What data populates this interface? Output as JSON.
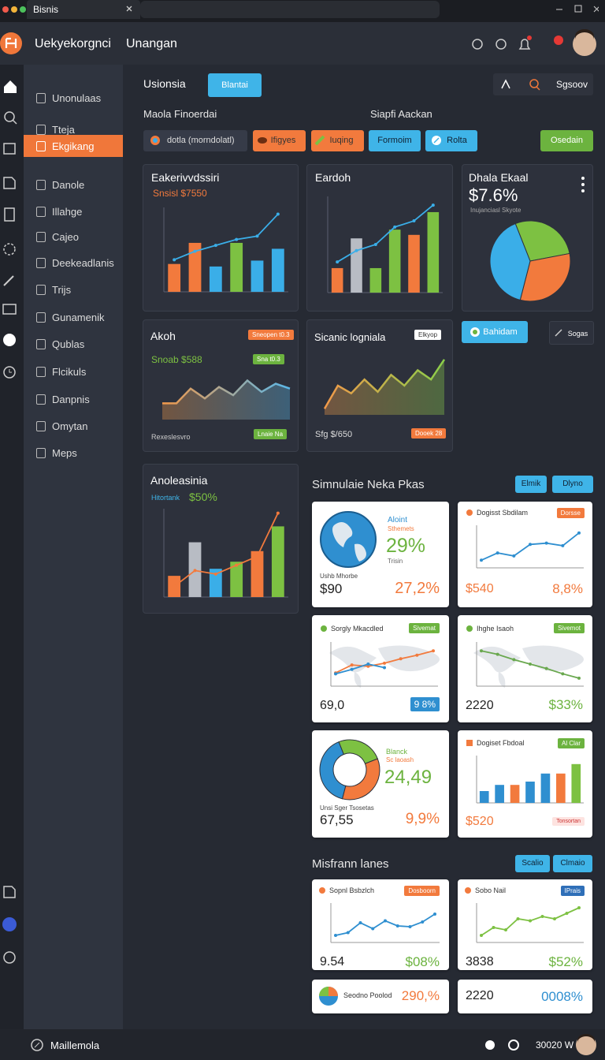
{
  "browser": {
    "tab_title": "Bisnis"
  },
  "header": {
    "app_name": "Uekyekorgnci",
    "section": "Unangan"
  },
  "sidebar": {
    "items": [
      {
        "label": "Unonulaas"
      },
      {
        "label": "Tteja"
      },
      {
        "label": "Ekgikang",
        "active": true
      },
      {
        "label": "Danole"
      },
      {
        "label": "Illahge"
      },
      {
        "label": "Cajeo"
      },
      {
        "label": "Deekeadlanis"
      },
      {
        "label": "Trijs"
      },
      {
        "label": "Gunamenik"
      },
      {
        "label": "Qublas"
      },
      {
        "label": "Flcikuls"
      },
      {
        "label": "Danpnis"
      },
      {
        "label": "Omytan"
      },
      {
        "label": "Meps"
      }
    ]
  },
  "toolbar": {
    "title": "Usionsia",
    "tab": "Blantai",
    "account": "Sgsoov"
  },
  "filters": {
    "left_label": "Maola Finoerdai",
    "right_label": "Siapfi Aackan",
    "chips": [
      "dotla (morndolatl)",
      "Ifigyes",
      "Iuqing",
      "Formoim",
      "Rolta"
    ],
    "action": "Osedain"
  },
  "overview": {
    "revenue": {
      "title": "Eakerivvdssiri",
      "subtitle": "Snsisl $7550",
      "chart": {
        "type": "bar",
        "ylim": [
          0,
          100
        ],
        "bars": {
          "values": [
            33,
            58,
            30,
            58,
            37,
            51
          ],
          "colors": [
            "#f27a3d",
            "#f27a3d",
            "#3aaee8",
            "#7dc142",
            "#3aaee8",
            "#3aaee8"
          ]
        },
        "series": [
          {
            "values": [
              38,
              48,
              55,
              62,
              66,
              92
            ],
            "color": "#3aaee8"
          }
        ]
      }
    },
    "earnings": {
      "title": "Eardoh",
      "chart": {
        "type": "bar",
        "ylim": [
          0,
          110
        ],
        "bars": {
          "values": [
            28,
            62,
            28,
            72,
            66,
            92
          ],
          "colors": [
            "#f27a3d",
            "#b8bcc4",
            "#7dc142",
            "#7dc142",
            "#f27a3d",
            "#7dc142"
          ]
        },
        "series": [
          {
            "values": [
              35,
              48,
              55,
              75,
              82,
              100
            ],
            "color": "#3aaee8"
          }
        ]
      }
    },
    "share": {
      "title": "Dhala Ekaal",
      "value": "$7.6%",
      "subtitle": "Inujanciasl Skyote",
      "chart": {
        "type": "pie",
        "values": [
          28,
          32,
          40
        ],
        "colors": [
          "#7dc142",
          "#f27a3d",
          "#3aaee8"
        ]
      }
    },
    "trend": {
      "title": "Akoh",
      "badge": "Sneopen t0.3",
      "value": "Snoab $588",
      "badge2": "Sna t0.3",
      "footer": "Rexeslesvro",
      "badge3": "Lnaie Na",
      "chart": {
        "type": "area",
        "ylim": [
          0,
          60
        ],
        "values": [
          20,
          20,
          38,
          26,
          40,
          30,
          48,
          34,
          44,
          38
        ],
        "color": "#f2994a",
        "color2": "#5ab7e8"
      }
    },
    "signal": {
      "title": "Sicanic logniala",
      "badge": "Elkyop",
      "footer": "Sfg $/650",
      "badge2": "Dooek 28",
      "chart": {
        "type": "area",
        "ylim": [
          0,
          80
        ],
        "values": [
          8,
          38,
          28,
          46,
          30,
          52,
          38,
          58,
          46,
          72
        ],
        "color": "#f2994a",
        "color2": "#8bcf4a"
      }
    },
    "buttons": [
      "Bahidam",
      "Sogas"
    ],
    "analysis": {
      "title": "Anoleasinia",
      "label": "Hitortank",
      "value": "$50%",
      "chart": {
        "type": "bar",
        "ylim": [
          0,
          100
        ],
        "bars": {
          "values": [
            24,
            62,
            32,
            40,
            52,
            80
          ],
          "colors": [
            "#f27a3d",
            "#b8bcc4",
            "#3aaee8",
            "#7dc142",
            "#f27a3d",
            "#7dc142"
          ]
        },
        "series": [
          {
            "values": [
              12,
              30,
              26,
              36,
              46,
              95
            ],
            "color": "#f27a3d"
          }
        ]
      }
    }
  },
  "simulation": {
    "title": "Simnulaie Neka Pkas",
    "buttons": [
      "Elmik",
      "Dlyno"
    ],
    "globe": {
      "label": "Aloint",
      "sublabel": "Sthemets",
      "value": "29%",
      "note": "Trisin",
      "caption": "Ushb Mhorbe",
      "amount": "$90",
      "change": "27,2%"
    },
    "growth": {
      "title": "Dogisst Sbdilam",
      "badge": "Dorsse",
      "amount": "$540",
      "change": "8,8%",
      "chart": {
        "type": "line",
        "ylim": [
          0,
          100
        ],
        "series": [
          {
            "values": [
              18,
              35,
              28,
              55,
              58,
              52,
              82
            ],
            "color": "#2f8fd0"
          }
        ]
      }
    },
    "regions": {
      "title": "Sorgly Mkacdled",
      "badge": "Sivemat",
      "amount": "69,0",
      "change": "9 8%",
      "chart": {
        "type": "line",
        "ylim": [
          0,
          100
        ],
        "series": [
          {
            "values": [
              30,
              48,
              45,
              52,
              62,
              70,
              80
            ],
            "color": "#f27a3d"
          },
          {
            "values": [
              28,
              38,
              50,
              42
            ],
            "color": "#2f8fd0"
          }
        ]
      }
    },
    "markets": {
      "title": "Ihghe Isaoh",
      "badge": "Sivemot",
      "amount": "2220",
      "change": "$33%",
      "chart": {
        "type": "line",
        "ylim": [
          0,
          100
        ],
        "series": [
          {
            "values": [
              80,
              72,
              60,
              50,
              40,
              28,
              18
            ],
            "color": "#6aa84f"
          }
        ]
      }
    },
    "mix": {
      "label": "Blanck",
      "sublabel": "Sc laoash",
      "value": "24,49",
      "caption": "Unsi Sger Tsosetas",
      "amount": "67,55",
      "change": "9,9%",
      "chart": {
        "type": "donut",
        "values": [
          25,
          35,
          40
        ],
        "colors": [
          "#7dc142",
          "#f27a3d",
          "#2f8fd0"
        ]
      }
    },
    "volume": {
      "title": "Dogiset Fbdoal",
      "badge": "Al Clar",
      "amount": "$520",
      "badge2": "Tonsortan",
      "chart": {
        "type": "bar",
        "ylim": [
          0,
          100
        ],
        "bars": {
          "values": [
            25,
            38,
            38,
            45,
            62,
            62,
            82
          ],
          "colors": [
            "#2f8fd0",
            "#2f8fd0",
            "#f27a3d",
            "#2f8fd0",
            "#2f8fd0",
            "#f27a3d",
            "#7dc142"
          ]
        }
      }
    }
  },
  "lanes": {
    "title": "Misfrann lanes",
    "buttons": [
      "Scalio",
      "Clmaio"
    ],
    "left": {
      "title": "Sopnl Bsbzlch",
      "badge": "Dosboorn",
      "amount": "9.54",
      "change": "$08%",
      "chart": {
        "type": "line",
        "ylim": [
          0,
          100
        ],
        "series": [
          {
            "values": [
              18,
              25,
              50,
              35,
              55,
              42,
              40,
              52,
              72
            ],
            "color": "#2f8fd0"
          }
        ]
      }
    },
    "right": {
      "title": "Sobo Nail",
      "badge": "IPrais",
      "amount": "3838",
      "change": "$52%",
      "chart": {
        "type": "line",
        "ylim": [
          0,
          100
        ],
        "series": [
          {
            "values": [
              18,
              38,
              32,
              60,
              55,
              66,
              60,
              74,
              88
            ],
            "color": "#7dc142"
          }
        ]
      }
    },
    "mini_left": {
      "title": "Seodno Poolod",
      "value": "290,%"
    },
    "mini_right": {
      "amount": "2220",
      "value": "0008%"
    }
  },
  "footer": {
    "label": "Maillemola",
    "status": "30020 W"
  }
}
